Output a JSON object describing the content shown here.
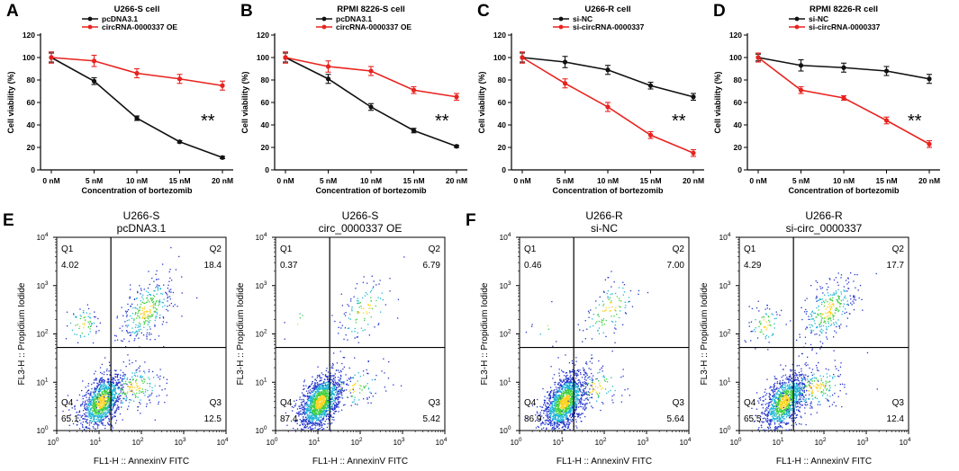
{
  "colors": {
    "black_series": "#111111",
    "red_series": "#e8231f",
    "axis": "#000000"
  },
  "line_panels": [
    {
      "letter": "A",
      "title": "U266-S cell",
      "xlabel": "Concentration of bortezomib",
      "ylabel": "Cell viability (%)",
      "sig": "**",
      "legend": [
        "pcDNA3.1",
        "circRNA-0000337 OE"
      ]
    },
    {
      "letter": "B",
      "title": "RPMI 8226-S cell",
      "xlabel": "Concentration of bortezomib",
      "ylabel": "Cell viability (%)",
      "sig": "**",
      "legend": [
        "pcDNA3.1",
        "circRNA-0000337 OE"
      ]
    },
    {
      "letter": "C",
      "title": "U266-R cell",
      "xlabel": "Concentration of bortezomib",
      "ylabel": "Cell viability (%)",
      "sig": "**",
      "legend": [
        "si-NC",
        "si-circRNA-0000337"
      ]
    },
    {
      "letter": "D",
      "title": "RPMI 8226-R cell",
      "xlabel": "Concentration of bortezomib",
      "ylabel": "Cell viability (%)",
      "sig": "**",
      "legend": [
        "si-NC",
        "si-circRNA-0000337"
      ]
    }
  ],
  "flow_panels": [
    {
      "letter": "E",
      "title1": "U266-S",
      "title2": "pcDNA3.1",
      "q1": "4.02",
      "q2": "18.4",
      "q3": "12.5",
      "q4": "65.1"
    },
    {
      "letter": "",
      "title1": "U266-S",
      "title2": "circ_0000337 OE",
      "q1": "0.37",
      "q2": "6.79",
      "q3": "5.42",
      "q4": "87.4"
    },
    {
      "letter": "F",
      "title1": "U266-R",
      "title2": "si-NC",
      "q1": "0.46",
      "q2": "7.00",
      "q3": "5.64",
      "q4": "86.9"
    },
    {
      "letter": "",
      "title1": "U266-R",
      "title2": "si-circ_0000337",
      "q1": "4.29",
      "q2": "17.7",
      "q3": "12.4",
      "q4": "65.5"
    }
  ],
  "flow_labels": {
    "xlabel": "FL1-H :: AnnexinV FITC",
    "ylabel": "FL3-H :: Propidium Iodide",
    "quad_names": [
      "Q1",
      "Q2",
      "Q3",
      "Q4"
    ],
    "ticks": [
      "10",
      "10",
      "10",
      "10",
      "10"
    ],
    "exps": [
      "0",
      "1",
      "2",
      "3",
      "4"
    ]
  },
  "chart_data": [
    {
      "type": "line",
      "title": "U266-S cell",
      "xlabel": "Concentration of bortezomib",
      "ylabel": "Cell viability (%)",
      "categories": [
        "0 nM",
        "5 nM",
        "10 nM",
        "15 nM",
        "20 nM"
      ],
      "ylim": [
        0,
        120
      ],
      "yticks": [
        0,
        20,
        40,
        60,
        80,
        100,
        120
      ],
      "series": [
        {
          "name": "pcDNA3.1",
          "values": [
            100,
            79,
            46,
            25,
            11
          ],
          "errors": [
            4,
            3,
            2,
            1,
            1
          ]
        },
        {
          "name": "circRNA-0000337 OE",
          "values": [
            100,
            97,
            86,
            81,
            75
          ],
          "errors": [
            5,
            5,
            4,
            4,
            4
          ]
        }
      ]
    },
    {
      "type": "line",
      "title": "RPMI 8226-S cell",
      "xlabel": "Concentration of bortezomib",
      "ylabel": "Cell viability (%)",
      "categories": [
        "0 nM",
        "5 nM",
        "10 nM",
        "15 nM",
        "20 nM"
      ],
      "ylim": [
        0,
        120
      ],
      "yticks": [
        0,
        20,
        40,
        60,
        80,
        100,
        120
      ],
      "series": [
        {
          "name": "pcDNA3.1",
          "values": [
            100,
            81,
            56,
            35,
            21
          ],
          "errors": [
            4,
            4,
            3,
            2,
            1
          ]
        },
        {
          "name": "circRNA-0000337 OE",
          "values": [
            100,
            92,
            88,
            71,
            65
          ],
          "errors": [
            5,
            5,
            4,
            3,
            3
          ]
        }
      ]
    },
    {
      "type": "line",
      "title": "U266-R cell",
      "xlabel": "Concentration of bortezomib",
      "ylabel": "Cell viability (%)",
      "categories": [
        "0 nM",
        "5 nM",
        "10 nM",
        "15 nM",
        "20 nM"
      ],
      "ylim": [
        0,
        120
      ],
      "yticks": [
        0,
        20,
        40,
        60,
        80,
        100,
        120
      ],
      "series": [
        {
          "name": "si-NC",
          "values": [
            100,
            96,
            89,
            75,
            65
          ],
          "errors": [
            4,
            5,
            4,
            3,
            3
          ]
        },
        {
          "name": "si-circRNA-0000337",
          "values": [
            100,
            77,
            56,
            31,
            15
          ],
          "errors": [
            5,
            4,
            4,
            3,
            3
          ]
        }
      ]
    },
    {
      "type": "line",
      "title": "RPMI 8226-R cell",
      "xlabel": "Concentration of bortezomib",
      "ylabel": "Cell viability (%)",
      "categories": [
        "0 nM",
        "5 nM",
        "10 nM",
        "15 nM",
        "20 nM"
      ],
      "ylim": [
        0,
        120
      ],
      "yticks": [
        0,
        20,
        40,
        60,
        80,
        100,
        120
      ],
      "series": [
        {
          "name": "si-NC",
          "values": [
            100,
            93,
            91,
            88,
            81
          ],
          "errors": [
            3,
            5,
            4,
            4,
            4
          ]
        },
        {
          "name": "si-circRNA-0000337",
          "values": [
            100,
            71,
            64,
            44,
            23
          ],
          "errors": [
            4,
            3,
            2,
            3,
            3
          ]
        }
      ]
    }
  ]
}
